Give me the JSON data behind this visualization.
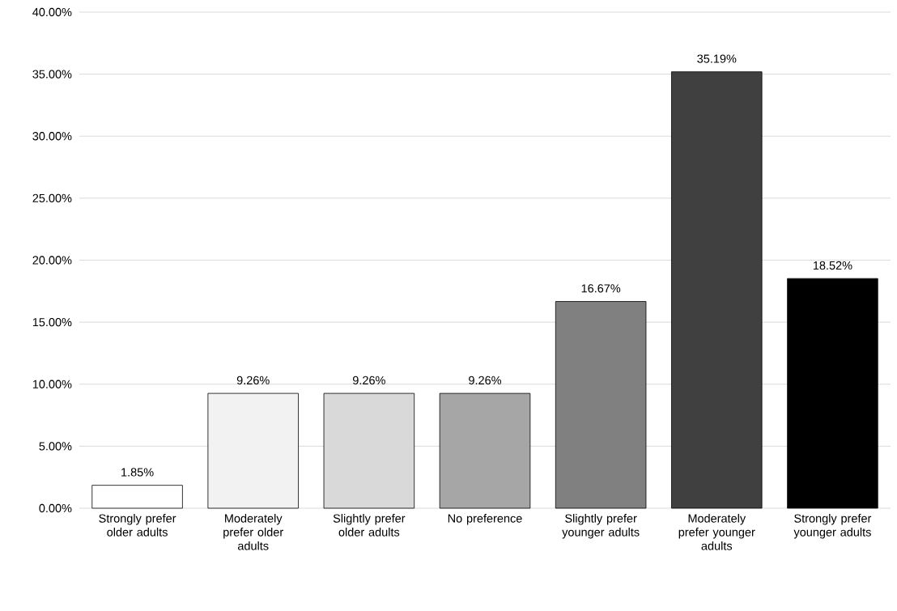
{
  "chart_data": {
    "type": "bar",
    "categories": [
      "Strongly prefer older adults",
      "Moderately prefer older adults",
      "Slightly prefer older adults",
      "No preference",
      "Slightly prefer younger adults",
      "Moderately prefer younger adults",
      "Strongly prefer younger adults"
    ],
    "values": [
      1.85,
      9.26,
      9.26,
      9.26,
      16.67,
      35.19,
      18.52
    ],
    "colors": [
      "#ffffff",
      "#f2f2f2",
      "#d9d9d9",
      "#a6a6a6",
      "#808080",
      "#404040",
      "#000000"
    ],
    "value_labels": [
      "1.85%",
      "9.26%",
      "9.26%",
      "9.26%",
      "16.67%",
      "35.19%",
      "18.52%"
    ],
    "ylim": [
      0,
      40
    ],
    "yticks": [
      {
        "value": 0,
        "label": "0.00%"
      },
      {
        "value": 5,
        "label": "5.00%"
      },
      {
        "value": 10,
        "label": "10.00%"
      },
      {
        "value": 15,
        "label": "15.00%"
      },
      {
        "value": 20,
        "label": "20.00%"
      },
      {
        "value": 25,
        "label": "25.00%"
      },
      {
        "value": 30,
        "label": "30.00%"
      },
      {
        "value": 35,
        "label": "35.00%"
      },
      {
        "value": 40,
        "label": "40.00%"
      }
    ],
    "grid": "y"
  }
}
